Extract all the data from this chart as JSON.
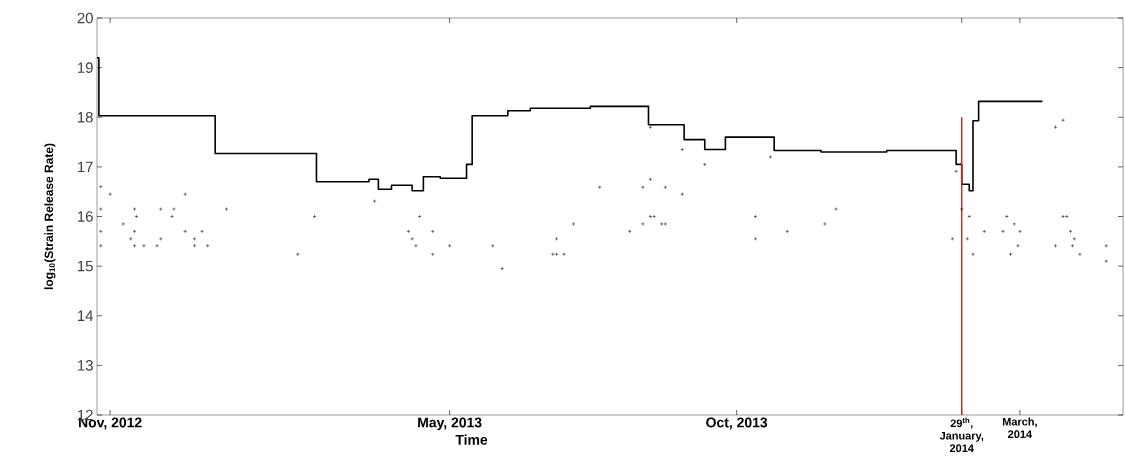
{
  "chart_data": {
    "type": "line",
    "xlabel": "Time",
    "ylabel": "log$_{10}$(Strain Release Rate)",
    "xlim": [
      "2012-10-25",
      "2014-04-25"
    ],
    "ylim": [
      12,
      20
    ],
    "xticks": [
      {
        "value": "2012-11-01",
        "label": "Nov, 2012"
      },
      {
        "value": "2013-05-01",
        "label": "May, 2013"
      },
      {
        "value": "2013-10-01",
        "label": "Oct, 2013"
      },
      {
        "value": "2014-01-29",
        "label": "29$^{th}$, January, 2014"
      },
      {
        "value": "2014-03-01",
        "label": "March, 2014"
      }
    ],
    "yticks": [
      12,
      13,
      14,
      15,
      16,
      17,
      18,
      19,
      20
    ],
    "series": [
      {
        "type": "step",
        "color": "#000000",
        "marker": "none",
        "x": [
          "2012-10-25",
          "2012-10-26",
          "2012-12-27",
          "2013-02-19",
          "2013-03-19",
          "2013-03-24",
          "2013-03-31",
          "2013-04-11",
          "2013-04-17",
          "2013-04-26",
          "2013-05-10",
          "2013-05-13",
          "2013-06-01",
          "2013-06-13",
          "2013-07-15",
          "2013-08-15",
          "2013-09-03",
          "2013-09-14",
          "2013-09-25",
          "2013-10-21",
          "2013-11-15",
          "2013-12-20",
          "2014-01-26",
          "2014-01-29",
          "2014-02-02",
          "2014-02-04",
          "2014-02-07",
          "2014-03-13"
        ],
        "values": [
          19.2,
          18.03,
          17.27,
          16.7,
          16.75,
          16.55,
          16.63,
          16.52,
          16.8,
          16.77,
          17.05,
          18.03,
          18.13,
          18.18,
          18.22,
          17.85,
          17.55,
          17.35,
          17.6,
          17.33,
          17.3,
          17.33,
          17.05,
          16.65,
          16.52,
          17.93,
          18.32,
          18.32
        ]
      },
      {
        "type": "scatter",
        "color": "#000000",
        "marker": "cross",
        "x": [
          "2012-10-27",
          "2012-11-01",
          "2012-10-27",
          "2012-10-27",
          "2012-10-27",
          "2012-11-08",
          "2012-11-14",
          "2012-11-15",
          "2012-11-12",
          "2012-11-14",
          "2012-11-14",
          "2012-11-19",
          "2012-11-26",
          "2012-11-28",
          "2012-11-28",
          "2012-12-04",
          "2012-12-05",
          "2012-12-11",
          "2012-12-11",
          "2012-12-16",
          "2012-12-16",
          "2012-12-20",
          "2012-12-23",
          "2013-01-02",
          "2013-02-09",
          "2013-02-18",
          "2013-03-22",
          "2013-04-09",
          "2013-04-11",
          "2013-04-13",
          "2013-04-15",
          "2013-04-22",
          "2013-04-22",
          "2013-05-01",
          "2013-05-24",
          "2013-05-29",
          "2013-06-27",
          "2013-06-25",
          "2013-06-27",
          "2013-07-01",
          "2013-07-06",
          "2013-07-20",
          "2013-08-05",
          "2013-08-12",
          "2013-08-12",
          "2013-08-16",
          "2013-08-16",
          "2013-08-16",
          "2013-08-18",
          "2013-08-24",
          "2013-08-22",
          "2013-08-24",
          "2013-09-02",
          "2013-09-02",
          "2013-09-14",
          "2013-10-11",
          "2013-10-11",
          "2013-10-19",
          "2013-10-28",
          "2013-11-17",
          "2013-11-23",
          "2014-01-26",
          "2014-01-29",
          "2014-01-24",
          "2014-02-01",
          "2014-02-02",
          "2014-02-04",
          "2014-02-10",
          "2014-02-20",
          "2014-02-22",
          "2014-02-24",
          "2014-02-26",
          "2014-02-28",
          "2014-03-01",
          "2014-03-20",
          "2014-03-24",
          "2014-03-20",
          "2014-03-24",
          "2014-03-26",
          "2014-03-28",
          "2014-03-29",
          "2014-03-30",
          "2014-04-02",
          "2014-04-16",
          "2014-04-16"
        ],
        "values": [
          16.6,
          16.45,
          16.15,
          15.7,
          15.41,
          15.85,
          16.15,
          16.0,
          15.55,
          15.7,
          15.41,
          15.41,
          15.41,
          15.55,
          16.15,
          16.0,
          16.15,
          16.45,
          15.7,
          15.55,
          15.41,
          15.7,
          15.41,
          16.15,
          15.24,
          16.0,
          16.31,
          15.7,
          15.55,
          15.41,
          16.0,
          15.7,
          15.24,
          15.41,
          15.41,
          14.95,
          15.55,
          15.24,
          15.24,
          15.24,
          15.85,
          16.59,
          15.7,
          16.59,
          15.85,
          16.75,
          17.8,
          16.0,
          16.0,
          16.59,
          15.85,
          15.85,
          17.35,
          16.45,
          17.05,
          16.0,
          15.55,
          17.2,
          15.7,
          15.85,
          16.15,
          16.91,
          16.15,
          15.55,
          15.55,
          16.0,
          15.24,
          15.7,
          15.7,
          16.0,
          15.24,
          15.85,
          15.41,
          15.7,
          17.8,
          17.94,
          15.41,
          16.0,
          16.0,
          15.7,
          15.41,
          15.55,
          15.24,
          15.41,
          15.1
        ]
      },
      {
        "color": "#d62020",
        "marker": "none",
        "x": [
          "2014-01-29",
          "2014-01-29"
        ],
        "values": [
          12,
          18
        ]
      }
    ]
  }
}
